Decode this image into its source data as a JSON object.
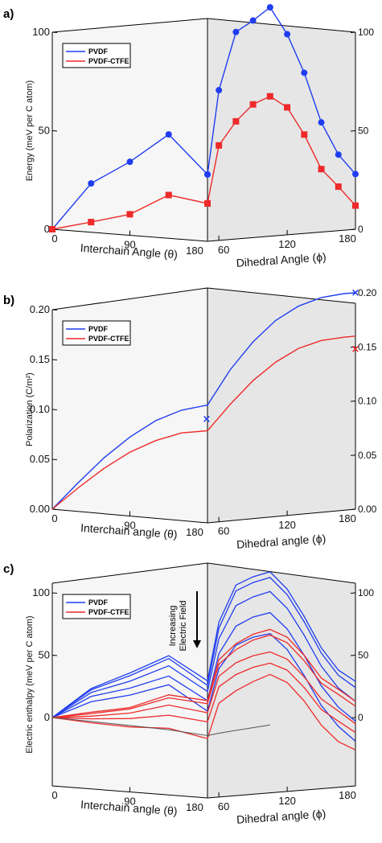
{
  "colors": {
    "pvdf": "#1f3df0",
    "ctfe": "#ee2a2a",
    "shade": "#e6e6e6",
    "shade_left": "#f6f6f6"
  },
  "chart_data": [
    {
      "type": "line",
      "panel_label": "a)",
      "ylabel": "Energy (meV per C atom)",
      "left_xlabel": "Interchain Angle (θ)",
      "right_xlabel": "Dihedral Angle (ϕ)",
      "left_xticks": [
        "0",
        "90",
        "180"
      ],
      "right_xticks": [
        "60",
        "120",
        "180"
      ],
      "left_yticks": [
        "0",
        "50",
        "100"
      ],
      "right_yticks": [
        "0",
        "50",
        "100"
      ],
      "ylim": [
        0,
        100
      ],
      "left_xlim": [
        0,
        180
      ],
      "right_xlim": [
        50,
        180
      ],
      "legend": [
        "PVDF",
        "PVDF-CTFE"
      ],
      "legend_position": "top-left",
      "series": [
        {
          "name": "PVDF",
          "marker": "circle",
          "left": {
            "x": [
              0,
              45,
              90,
              135,
              180
            ],
            "y": [
              0,
              24,
              35,
              48,
              30
            ]
          },
          "right": {
            "x": [
              50,
              60,
              75,
              90,
              105,
              120,
              135,
              150,
              165,
              180
            ],
            "y": [
              30,
              68,
              95,
              101,
              108,
              96,
              78,
              54,
              38,
              28
            ]
          }
        },
        {
          "name": "PVDF-CTFE",
          "marker": "square",
          "left": {
            "x": [
              0,
              45,
              90,
              135,
              180
            ],
            "y": [
              0,
              5,
              10,
              20,
              17
            ]
          },
          "right": {
            "x": [
              50,
              60,
              75,
              90,
              105,
              120,
              135,
              150,
              165,
              180
            ],
            "y": [
              17,
              43,
              54,
              62,
              66,
              61,
              48,
              31,
              22,
              12
            ]
          }
        }
      ]
    },
    {
      "type": "line",
      "panel_label": "b)",
      "ylabel": "Polarization (C/m²)",
      "left_xlabel": "Interchain angle (θ)",
      "right_xlabel": "Dihedral angle (ϕ)",
      "left_xticks": [
        "0",
        "90",
        "180"
      ],
      "right_xticks": [
        "60",
        "120",
        "180"
      ],
      "left_yticks": [
        "0.00",
        "0.05",
        "0.10",
        "0.15",
        "0.20"
      ],
      "right_yticks": [
        "0.00",
        "0.05",
        "0.10",
        "0.15",
        "0.20"
      ],
      "ylim": [
        0,
        0.2
      ],
      "left_xlim": [
        0,
        180
      ],
      "right_xlim": [
        50,
        180
      ],
      "legend": [
        "PVDF",
        "PVDF-CTFE"
      ],
      "legend_position": "top-left",
      "series": [
        {
          "name": "PVDF",
          "left": {
            "x": [
              0,
              30,
              60,
              90,
              120,
              150,
              180
            ],
            "y": [
              0,
              0.028,
              0.053,
              0.073,
              0.088,
              0.097,
              0.101
            ]
          },
          "right": {
            "x": [
              50,
              70,
              90,
              110,
              130,
              150,
              170,
              180
            ],
            "y": [
              0.101,
              0.131,
              0.155,
              0.174,
              0.187,
              0.195,
              0.199,
              0.2
            ]
          },
          "x_markers": [
            {
              "side": "left",
              "x": 180,
              "y": 0.089
            },
            {
              "side": "right",
              "x": 180,
              "y": 0.2
            }
          ]
        },
        {
          "name": "PVDF-CTFE",
          "left": {
            "x": [
              0,
              30,
              60,
              90,
              120,
              150,
              180
            ],
            "y": [
              0,
              0.023,
              0.043,
              0.059,
              0.07,
              0.077,
              0.079
            ]
          },
          "right": {
            "x": [
              50,
              70,
              90,
              110,
              130,
              150,
              170,
              180
            ],
            "y": [
              0.079,
              0.101,
              0.121,
              0.137,
              0.149,
              0.156,
              0.159,
              0.16
            ]
          },
          "x_markers": [
            {
              "side": "right",
              "x": 180,
              "y": 0.148
            }
          ]
        }
      ]
    },
    {
      "type": "line",
      "panel_label": "c)",
      "ylabel": "Electric enthalpy (meV per C atom)",
      "left_xlabel": "Interchain angle (θ)",
      "right_xlabel": "Dihedral angle (ϕ)",
      "left_xticks": [
        "0",
        "90",
        "180"
      ],
      "right_xticks": [
        "60",
        "120",
        "180"
      ],
      "left_yticks": [
        "0",
        "50",
        "100"
      ],
      "right_yticks": [
        "0",
        "50",
        "100"
      ],
      "ylim": [
        -30,
        100
      ],
      "left_xlim": [
        0,
        180
      ],
      "right_xlim": [
        50,
        180
      ],
      "legend": [
        "PVDF",
        "PVDF-CTFE"
      ],
      "legend_position": "top-left",
      "annotation": [
        "Increasing",
        "Electric Field"
      ],
      "series": [
        {
          "name": "PVDF",
          "family": [
            {
              "left": [
                0,
                24,
                36,
                48,
                31
              ],
              "right": [
                31,
                70,
                96,
                103,
                108,
                97,
                78,
                55,
                38,
                29
              ]
            },
            {
              "left": [
                0,
                23,
                34,
                46,
                28
              ],
              "right": [
                28,
                66,
                92,
                99,
                104,
                93,
                74,
                51,
                34,
                24
              ]
            },
            {
              "left": [
                0,
                21,
                30,
                41,
                24
              ],
              "right": [
                24,
                59,
                82,
                89,
                94,
                83,
                64,
                41,
                24,
                13
              ]
            },
            {
              "left": [
                0,
                18,
                25,
                34,
                18
              ],
              "right": [
                18,
                49,
                68,
                75,
                79,
                68,
                49,
                26,
                9,
                -3
              ]
            },
            {
              "left": [
                0,
                14,
                20,
                28,
                11
              ],
              "right": [
                11,
                39,
                55,
                61,
                64,
                53,
                34,
                11,
                -6,
                -19
              ]
            }
          ]
        },
        {
          "name": "PVDF-CTFE",
          "family": [
            {
              "left": [
                0,
                6,
                11,
                21,
                18
              ],
              "right": [
                18,
                45,
                56,
                63,
                67,
                62,
                49,
                32,
                23,
                13
              ]
            },
            {
              "left": [
                0,
                5,
                10,
                19,
                16
              ],
              "right": [
                16,
                42,
                52,
                59,
                63,
                58,
                45,
                28,
                19,
                9
              ]
            },
            {
              "left": [
                0,
                3,
                7,
                14,
                10
              ],
              "right": [
                10,
                34,
                43,
                48,
                51,
                46,
                33,
                16,
                6,
                -5
              ]
            },
            {
              "left": [
                0,
                1,
                3,
                7,
                4
              ],
              "right": [
                4,
                27,
                35,
                40,
                43,
                38,
                25,
                8,
                -2,
                -12
              ]
            },
            {
              "left": [
                0,
                -2,
                -3,
                -2,
                -7
              ],
              "right": [
                -7,
                16,
                24,
                30,
                35,
                29,
                15,
                -4,
                -18,
                -26
              ]
            }
          ]
        },
        {
          "name": "zero line",
          "left": [
            0,
            -1,
            -2,
            -3,
            -5
          ],
          "right": [
            -5,
            -4,
            -3,
            -2,
            -1
          ]
        }
      ],
      "left_x": [
        0,
        45,
        90,
        135,
        180
      ],
      "right_x": [
        50,
        60,
        75,
        90,
        105,
        120,
        135,
        150,
        165,
        180
      ]
    }
  ]
}
